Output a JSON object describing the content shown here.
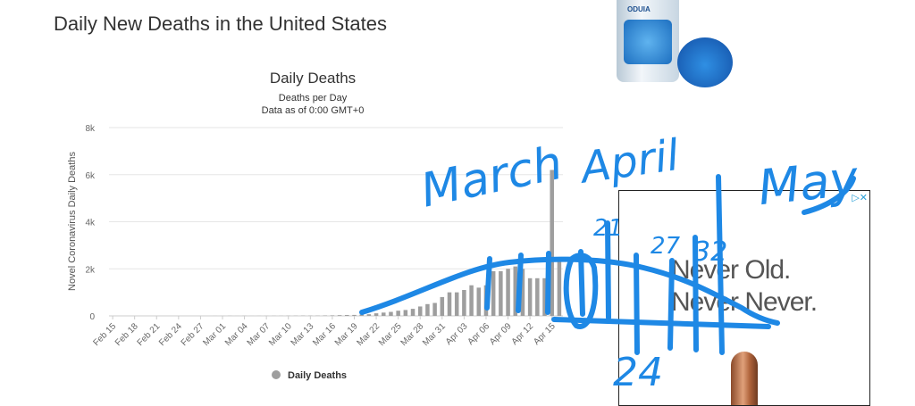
{
  "page": {
    "heading": "Daily New Deaths in the United States"
  },
  "chart_data": {
    "type": "bar",
    "title": "Daily Deaths",
    "subtitle": "Deaths per Day",
    "subtitle2": "Data as of 0:00 GMT+0",
    "xlabel": "",
    "ylabel": "Novel Coronavirus Daily Deaths",
    "ylim": [
      0,
      8000
    ],
    "yticks": [
      0,
      2000,
      4000,
      6000,
      8000
    ],
    "ytick_labels": [
      "0",
      "2k",
      "4k",
      "6k",
      "8k"
    ],
    "categories": [
      "Feb 15",
      "Feb 16",
      "Feb 17",
      "Feb 18",
      "Feb 19",
      "Feb 20",
      "Feb 21",
      "Feb 22",
      "Feb 23",
      "Feb 24",
      "Feb 25",
      "Feb 26",
      "Feb 27",
      "Feb 28",
      "Feb 29",
      "Mar 01",
      "Mar 02",
      "Mar 03",
      "Mar 04",
      "Mar 05",
      "Mar 06",
      "Mar 07",
      "Mar 08",
      "Mar 09",
      "Mar 10",
      "Mar 11",
      "Mar 12",
      "Mar 13",
      "Mar 14",
      "Mar 15",
      "Mar 16",
      "Mar 17",
      "Mar 18",
      "Mar 19",
      "Mar 20",
      "Mar 21",
      "Mar 22",
      "Mar 23",
      "Mar 24",
      "Mar 25",
      "Mar 26",
      "Mar 27",
      "Mar 28",
      "Mar 29",
      "Mar 30",
      "Mar 31",
      "Apr 01",
      "Apr 02",
      "Apr 03",
      "Apr 04",
      "Apr 05",
      "Apr 06",
      "Apr 07",
      "Apr 08",
      "Apr 09",
      "Apr 10",
      "Apr 11",
      "Apr 12",
      "Apr 13",
      "Apr 14",
      "Apr 15",
      "Apr 16"
    ],
    "xtick_labels": [
      "Feb 15",
      "Feb 18",
      "Feb 21",
      "Feb 24",
      "Feb 27",
      "Mar 01",
      "Mar 04",
      "Mar 07",
      "Mar 10",
      "Mar 13",
      "Mar 16",
      "Mar 19",
      "Mar 22",
      "Mar 25",
      "Mar 28",
      "Mar 31",
      "Apr 03",
      "Apr 06",
      "Apr 09",
      "Apr 12",
      "Apr 15"
    ],
    "series": [
      {
        "name": "Daily Deaths",
        "color": "#9e9e9e",
        "values": [
          0,
          0,
          0,
          0,
          0,
          0,
          0,
          0,
          0,
          0,
          0,
          0,
          0,
          0,
          1,
          1,
          4,
          1,
          4,
          1,
          3,
          3,
          4,
          4,
          7,
          8,
          11,
          9,
          10,
          18,
          22,
          32,
          38,
          41,
          55,
          70,
          110,
          140,
          170,
          220,
          250,
          300,
          400,
          500,
          550,
          800,
          1000,
          1000,
          1100,
          1300,
          1200,
          1300,
          1900,
          1900,
          2000,
          2100,
          2000,
          1600,
          1600,
          1600,
          6200,
          2400
        ]
      }
    ],
    "legend": {
      "position": "bottom-center",
      "label": "Daily Deaths"
    },
    "grid": true
  },
  "ad": {
    "badge": "▷✕",
    "line1": "Never Old.",
    "line2": "Never Never."
  },
  "product": {
    "brand": "ODUIA"
  },
  "annotations": {
    "march": "March",
    "april": "April",
    "may": "May",
    "num_21": "21",
    "num_27": "27",
    "num_32": "32",
    "num_24": "24",
    "ink_color": "#1e88e5"
  }
}
